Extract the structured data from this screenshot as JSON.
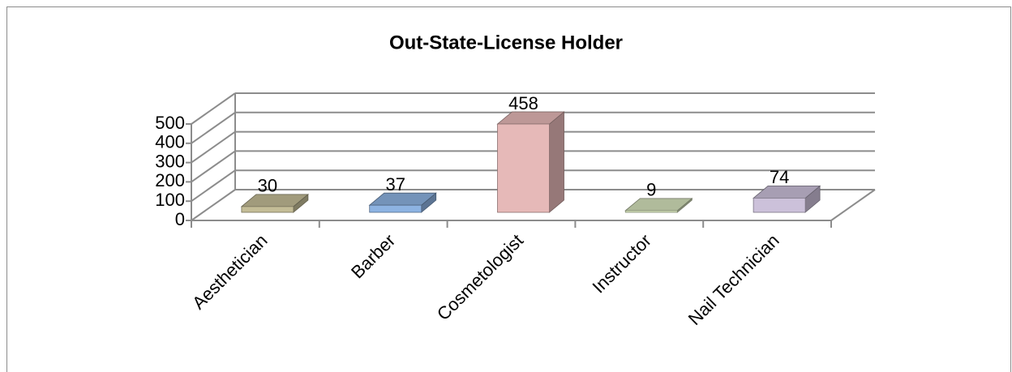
{
  "chart_data": {
    "type": "bar3d",
    "title": "Out-State-License Holder",
    "categories": [
      "Aesthetician",
      "Barber",
      "Cosmetologist",
      "Instructor",
      "Nail Technician"
    ],
    "values": [
      30,
      37,
      458,
      9,
      74
    ],
    "colors": [
      "#c4bd97",
      "#8db3e2",
      "#e6b9b8",
      "#d7e4bd",
      "#ccc1da"
    ],
    "ylim": [
      0,
      500
    ],
    "yticks": [
      0,
      100,
      200,
      300,
      400,
      500
    ],
    "grid": true
  }
}
